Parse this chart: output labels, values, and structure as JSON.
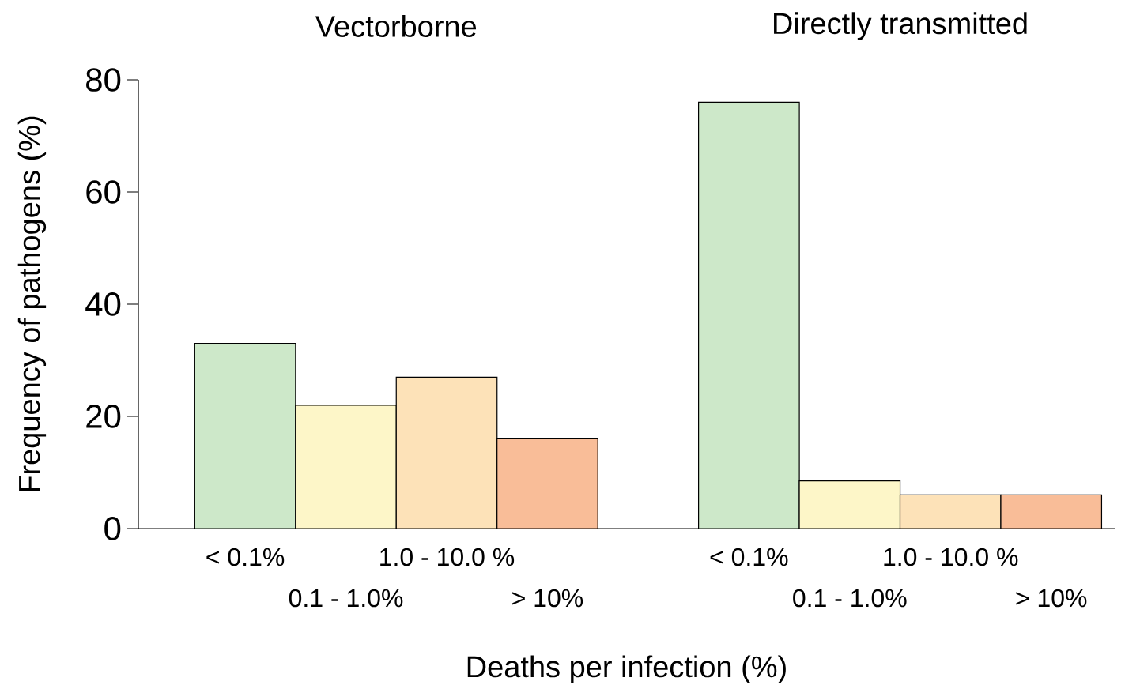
{
  "chart_data": {
    "type": "bar",
    "categories": [
      "< 0.1%",
      "0.1 - 1.0%",
      "1.0 - 10.0 %",
      "> 10%",
      null,
      "< 0.1%",
      "0.1 - 1.0%",
      "1.0 - 10.0 %",
      "> 10%"
    ],
    "values": [
      33,
      22,
      27,
      16,
      null,
      76,
      8.5,
      6,
      6
    ],
    "colors": [
      "#cde8c9",
      "#fdf6c8",
      "#fde2b8",
      "#f9bd98",
      null,
      "#cde8c9",
      "#fdf6c8",
      "#fde2b8",
      "#f9bd98"
    ],
    "ylim": [
      0,
      80
    ],
    "yticks": [
      0,
      20,
      40,
      60,
      80
    ],
    "xlabel": "Deaths per infection (%)",
    "ylabel": "Frequency of pathogens (%)",
    "annotations": [
      "Vectorborne",
      "Directly transmitted"
    ]
  }
}
